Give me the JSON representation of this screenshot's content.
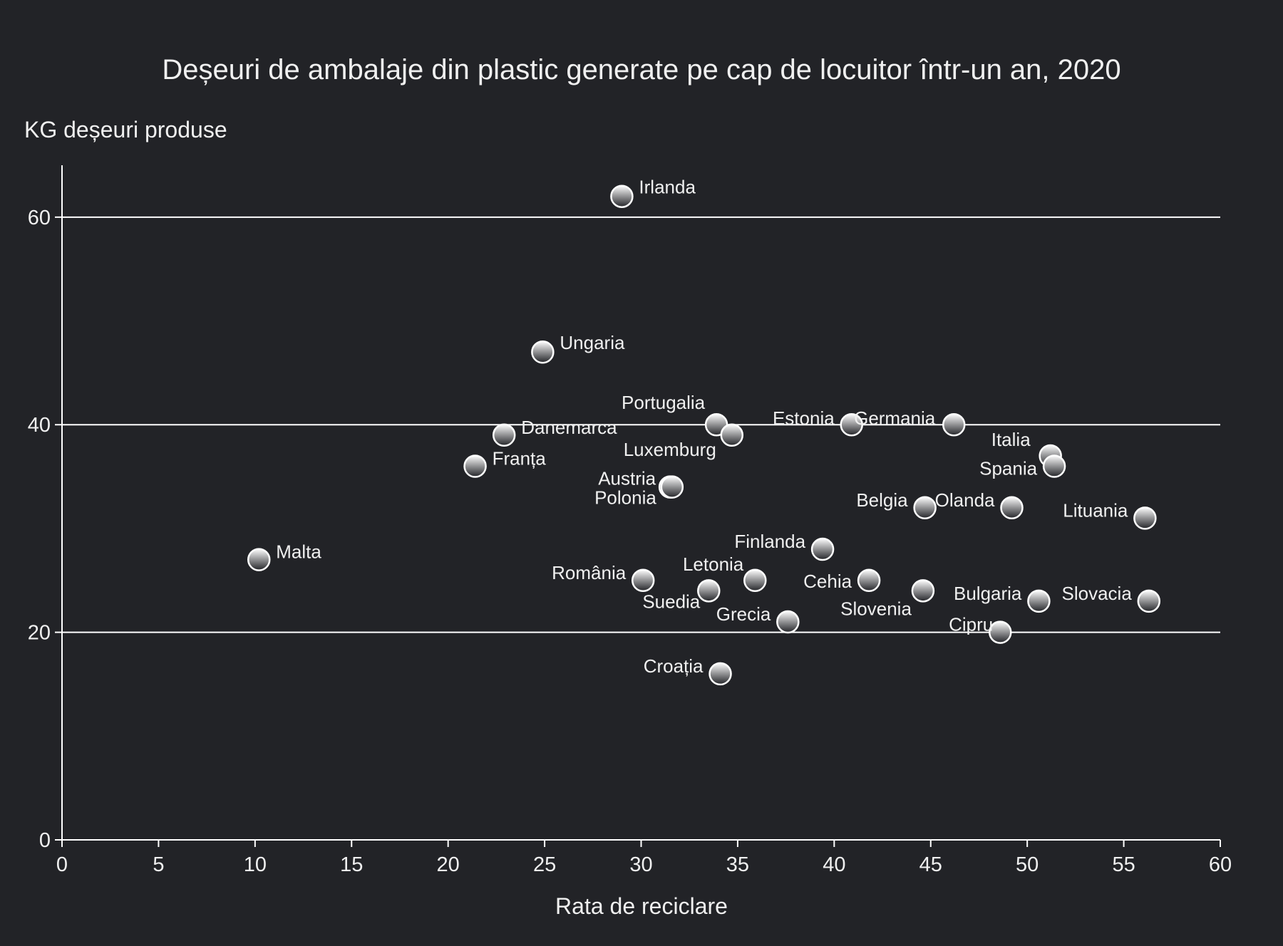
{
  "chart_data": {
    "type": "scatter",
    "title": "Deșeuri de ambalaje din plastic generate pe cap de locuitor într-un an, 2020",
    "xlabel": "Rata de reciclare",
    "ylabel": "KG deșeuri produse",
    "xlim": [
      0,
      60
    ],
    "ylim": [
      0,
      65
    ],
    "x_ticks": [
      0,
      5,
      10,
      15,
      20,
      25,
      30,
      35,
      40,
      45,
      50,
      55,
      60
    ],
    "y_ticks": [
      0,
      20,
      40,
      60
    ],
    "grid": "horizontal",
    "colors": {
      "background": "#222327",
      "text": "#f0f0f0",
      "grid": "#ffffff",
      "marker_top": "#ffffff",
      "marker_bottom": "#222327"
    },
    "points": [
      {
        "label": "Irlanda",
        "x": 29.0,
        "y": 62.0
      },
      {
        "label": "Ungaria",
        "x": 24.9,
        "y": 47.0
      },
      {
        "label": "Portugalia",
        "x": 33.9,
        "y": 40.0
      },
      {
        "label": "Luxemburg",
        "x": 34.7,
        "y": 39.0
      },
      {
        "label": "Danemarca",
        "x": 22.9,
        "y": 39.0
      },
      {
        "label": "Franța",
        "x": 21.4,
        "y": 36.0
      },
      {
        "label": "Estonia",
        "x": 40.9,
        "y": 40.0
      },
      {
        "label": "Germania",
        "x": 46.2,
        "y": 40.0
      },
      {
        "label": "Italia",
        "x": 51.2,
        "y": 37.0
      },
      {
        "label": "Spania",
        "x": 51.4,
        "y": 36.0
      },
      {
        "label": "Austria",
        "x": 31.5,
        "y": 34.0
      },
      {
        "label": "Polonia",
        "x": 31.6,
        "y": 34.0
      },
      {
        "label": "Belgia",
        "x": 44.7,
        "y": 32.0
      },
      {
        "label": "Olanda",
        "x": 49.2,
        "y": 32.0
      },
      {
        "label": "Lituania",
        "x": 56.1,
        "y": 31.0
      },
      {
        "label": "Malta",
        "x": 10.2,
        "y": 27.0
      },
      {
        "label": "Finlanda",
        "x": 39.4,
        "y": 28.0
      },
      {
        "label": "România",
        "x": 30.1,
        "y": 25.0
      },
      {
        "label": "Letonia",
        "x": 35.9,
        "y": 25.0
      },
      {
        "label": "Suedia",
        "x": 33.5,
        "y": 24.0
      },
      {
        "label": "Cehia",
        "x": 41.8,
        "y": 25.0
      },
      {
        "label": "Slovenia",
        "x": 44.6,
        "y": 24.0
      },
      {
        "label": "Grecia",
        "x": 37.6,
        "y": 21.0
      },
      {
        "label": "Bulgaria",
        "x": 50.6,
        "y": 23.0
      },
      {
        "label": "Slovacia",
        "x": 56.3,
        "y": 23.0
      },
      {
        "label": "Cipru",
        "x": 48.6,
        "y": 20.0
      },
      {
        "label": "Croația",
        "x": 34.1,
        "y": 16.0
      }
    ]
  }
}
